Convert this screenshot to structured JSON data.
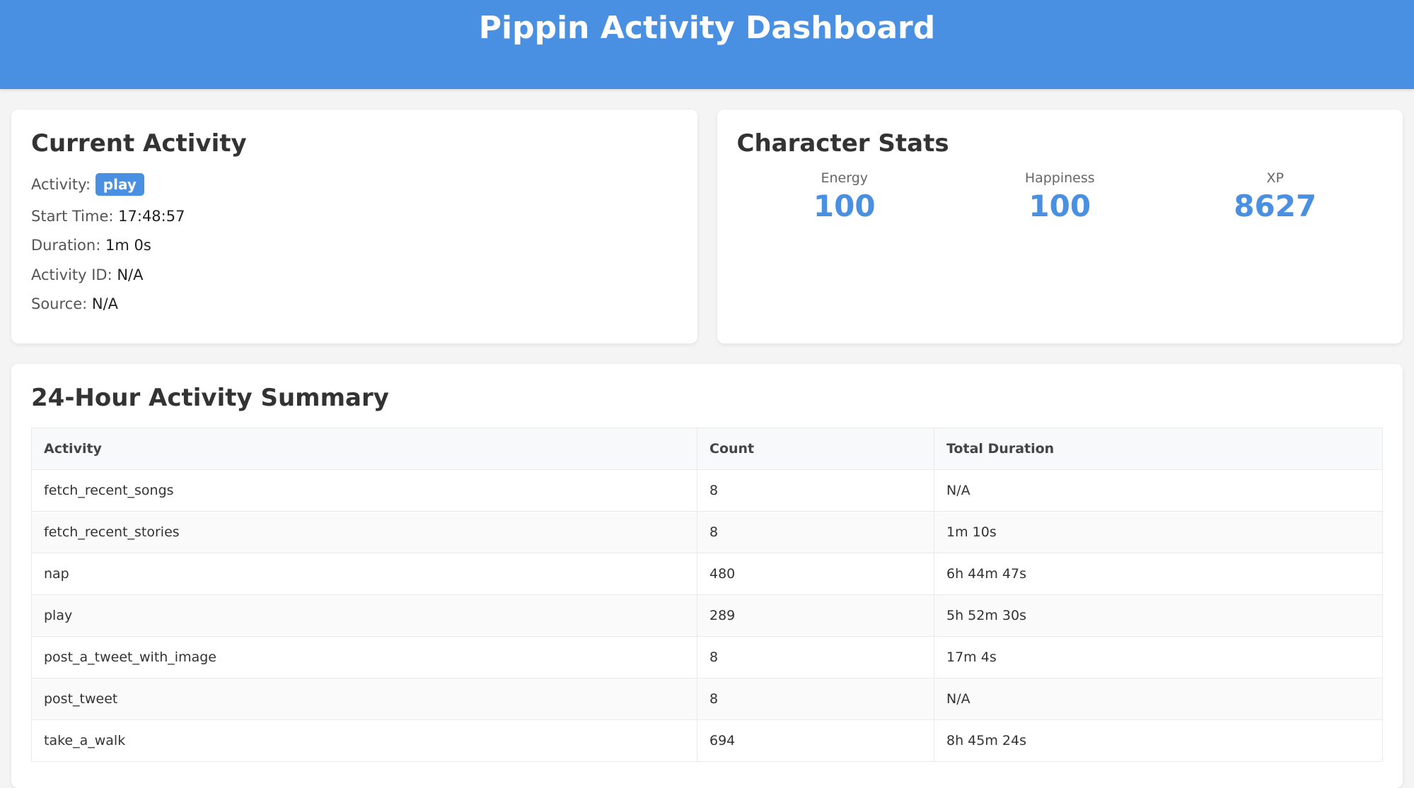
{
  "header": {
    "title": "Pippin Activity Dashboard",
    "color": "#4a90e2"
  },
  "current_activity": {
    "title": "Current Activity",
    "activity_label": "Activity:",
    "activity_value": "play",
    "start_time_label": "Start Time:",
    "start_time_value": "17:48:57",
    "duration_label": "Duration:",
    "duration_value": "1m 0s",
    "activity_id_label": "Activity ID:",
    "activity_id_value": "N/A",
    "source_label": "Source:",
    "source_value": "N/A"
  },
  "character_stats": {
    "title": "Character Stats",
    "stats": [
      {
        "label": "Energy",
        "value": "100"
      },
      {
        "label": "Happiness",
        "value": "100"
      },
      {
        "label": "XP",
        "value": "8627"
      }
    ]
  },
  "summary": {
    "title": "24-Hour Activity Summary",
    "columns": [
      "Activity",
      "Count",
      "Total Duration"
    ],
    "rows": [
      [
        "fetch_recent_songs",
        "8",
        "N/A"
      ],
      [
        "fetch_recent_stories",
        "8",
        "1m 10s"
      ],
      [
        "nap",
        "480",
        "6h 44m 47s"
      ],
      [
        "play",
        "289",
        "5h 52m 30s"
      ],
      [
        "post_a_tweet_with_image",
        "8",
        "17m 4s"
      ],
      [
        "post_tweet",
        "8",
        "N/A"
      ],
      [
        "take_a_walk",
        "694",
        "8h 45m 24s"
      ]
    ]
  }
}
